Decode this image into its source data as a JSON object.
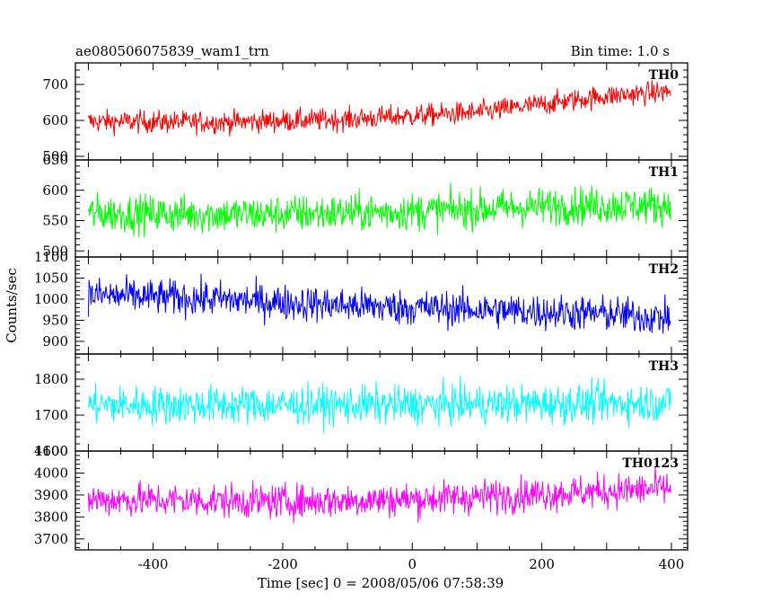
{
  "chart_data": {
    "type": "line",
    "title_left": "ae080506075839_wam1_trn",
    "title_right": "Bin time: 1.0 s",
    "xlabel": "Time [sec] 0 = 2008/05/06 07:58:39",
    "ylabel": "Counts/sec",
    "xlim": [
      -520,
      425
    ],
    "x_ticks": [
      -400,
      -200,
      0,
      200,
      400
    ],
    "x": {
      "start": -500,
      "end": 399,
      "step": 1
    },
    "grid": false,
    "series": [
      {
        "name": "TH0",
        "color": "#ff0000",
        "ylim": [
          490,
          760
        ],
        "y_ticks": [
          500,
          600,
          700
        ],
        "trend_x": [
          -500,
          -300,
          -100,
          100,
          300,
          399
        ],
        "trend_y": [
          597,
          595,
          603,
          622,
          668,
          680
        ],
        "noise_amplitude": 28
      },
      {
        "name": "TH1",
        "color": "#00ff00",
        "ylim": [
          490,
          650
        ],
        "y_ticks": [
          500,
          550,
          600,
          650
        ],
        "trend_x": [
          -500,
          -250,
          0,
          250,
          399
        ],
        "trend_y": [
          562,
          560,
          565,
          575,
          575
        ],
        "noise_amplitude": 28
      },
      {
        "name": "TH2",
        "color": "#0000ff",
        "ylim": [
          870,
          1100
        ],
        "y_ticks": [
          900,
          950,
          1000,
          1050,
          1100
        ],
        "trend_x": [
          -500,
          -300,
          -100,
          100,
          300,
          399
        ],
        "trend_y": [
          1010,
          1000,
          985,
          975,
          965,
          955
        ],
        "noise_amplitude": 38
      },
      {
        "name": "TH3",
        "color": "#00ffff",
        "ylim": [
          1600,
          1870
        ],
        "y_ticks": [
          1600,
          1700,
          1800
        ],
        "trend_x": [
          -500,
          0,
          399
        ],
        "trend_y": [
          1728,
          1728,
          1735
        ],
        "noise_amplitude": 48
      },
      {
        "name": "TH0123",
        "color": "#ff00ff",
        "ylim": [
          3650,
          4100
        ],
        "y_ticks": [
          3700,
          3800,
          3900,
          4000,
          4100
        ],
        "trend_x": [
          -500,
          -200,
          0,
          200,
          399
        ],
        "trend_y": [
          3880,
          3870,
          3880,
          3905,
          3930
        ],
        "noise_amplitude": 70
      }
    ]
  }
}
